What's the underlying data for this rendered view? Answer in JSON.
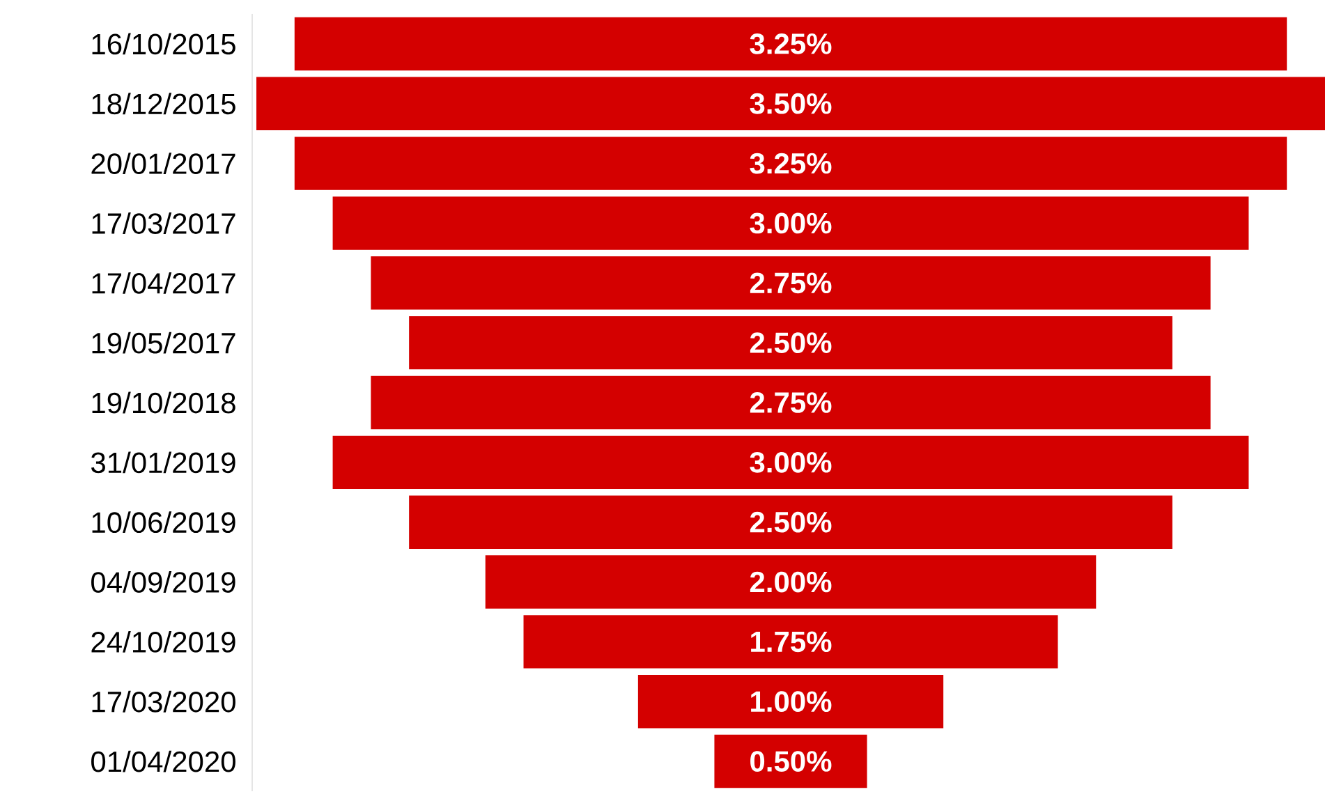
{
  "chart_data": {
    "type": "other",
    "categories": [
      "16/10/2015",
      "18/12/2015",
      "20/01/2017",
      "17/03/2017",
      "17/04/2017",
      "19/05/2017",
      "19/10/2018",
      "31/01/2019",
      "10/06/2019",
      "04/09/2019",
      "24/10/2019",
      "17/03/2020",
      "01/04/2020"
    ],
    "values": [
      3.25,
      3.5,
      3.25,
      3.0,
      2.75,
      2.5,
      2.75,
      3.0,
      2.5,
      2.0,
      1.75,
      1.0,
      0.5
    ],
    "value_labels": [
      "3.25%",
      "3.50%",
      "3.25%",
      "3.00%",
      "2.75%",
      "2.50%",
      "2.75%",
      "3.00%",
      "2.50%",
      "2.00%",
      "1.75%",
      "1.00%",
      "0.50%"
    ],
    "color": "#d40000"
  }
}
